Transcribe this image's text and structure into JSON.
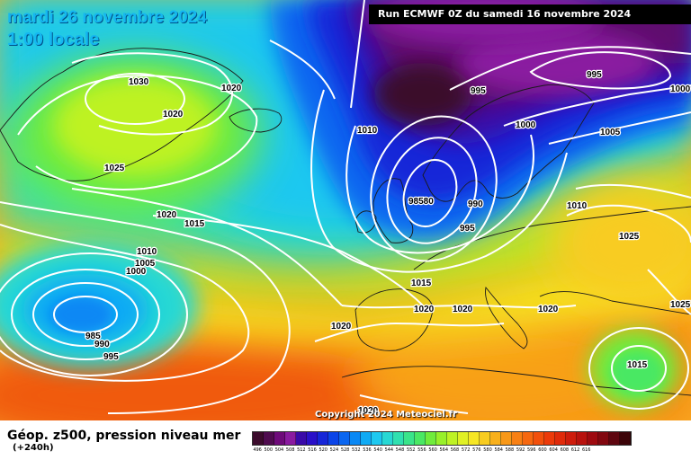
{
  "header": {
    "date": "mardi 26 novembre 2024",
    "time": "1:00 locale",
    "run": "Run ECMWF 0Z du samedi 16 novembre 2024"
  },
  "footer": {
    "field": "Géop. z500, pression niveau mer",
    "lead": "(+240h)",
    "copyright": "Copyright 2024 Meteociel.fr"
  },
  "legend": {
    "colors": [
      "#3b0b2c",
      "#4f0b4f",
      "#6e0a7a",
      "#8a1aa0",
      "#3a0aa8",
      "#2a10c8",
      "#1626d8",
      "#0a44e8",
      "#0a66f0",
      "#0a88f4",
      "#10aaf4",
      "#1ec8f0",
      "#28d8d4",
      "#30e0b0",
      "#3ae48a",
      "#4ae864",
      "#70ec3c",
      "#98f02a",
      "#bef224",
      "#e0f024",
      "#f6e624",
      "#f8cc20",
      "#f8b01c",
      "#f89818",
      "#f88014",
      "#f66810",
      "#f2500c",
      "#ec3a0a",
      "#e02a0a",
      "#ce1c0c",
      "#b8120e",
      "#9e0a10",
      "#820810",
      "#5e0610",
      "#3c0408"
    ],
    "labels": [
      "496",
      "500",
      "504",
      "508",
      "512",
      "516",
      "520",
      "524",
      "528",
      "532",
      "536",
      "540",
      "544",
      "548",
      "552",
      "556",
      "560",
      "564",
      "568",
      "572",
      "576",
      "580",
      "584",
      "588",
      "592",
      "596",
      "600",
      "604",
      "608",
      "612",
      "616"
    ]
  },
  "isobars": [
    {
      "text": "1030"
    },
    {
      "text": "1020"
    },
    {
      "text": "1020"
    },
    {
      "text": "1025"
    },
    {
      "text": "1010"
    },
    {
      "text": "995"
    },
    {
      "text": "995"
    },
    {
      "text": "1000"
    },
    {
      "text": "1000"
    },
    {
      "text": "1005"
    },
    {
      "text": "98580"
    },
    {
      "text": "990"
    },
    {
      "text": "995"
    },
    {
      "text": "1020"
    },
    {
      "text": "1015"
    },
    {
      "text": "1010"
    },
    {
      "text": "1005"
    },
    {
      "text": "1000"
    },
    {
      "text": "1010"
    },
    {
      "text": "1025"
    },
    {
      "text": "1015"
    },
    {
      "text": "1020"
    },
    {
      "text": "1020"
    },
    {
      "text": "1020"
    },
    {
      "text": "1020"
    },
    {
      "text": "1020"
    },
    {
      "text": "985"
    },
    {
      "text": "990"
    },
    {
      "text": "995"
    },
    {
      "text": "1015"
    },
    {
      "text": "1025"
    }
  ]
}
